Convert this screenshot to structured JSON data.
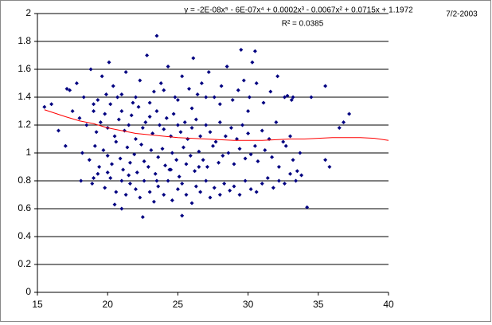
{
  "chart_data": {
    "type": "scatter",
    "annotations": [
      "y = -2E-08x⁵ - 6E-07x⁴ + 0.0002x³ - 0.0067x² + 0.0715x + 1.1972",
      "R² = 0.0385",
      "7/2-2003"
    ],
    "color": "#000080",
    "xlim": [
      15,
      40
    ],
    "xticks": [
      15,
      20,
      25,
      30,
      35,
      40
    ],
    "ylim": [
      0,
      2
    ],
    "yticks": [
      0,
      0.2,
      0.4,
      0.6,
      0.8,
      1,
      1.2,
      1.4,
      1.6,
      1.8,
      2
    ],
    "grid": true,
    "series": [
      {
        "x": [
          18,
          18.5,
          19,
          19.2,
          19.5,
          19.8,
          20,
          20.2,
          20.5,
          20.8,
          21,
          21.2,
          21.5,
          21.7,
          22,
          22.2,
          22.5,
          22.7,
          23,
          23.2,
          23.5,
          23.7,
          24,
          24.2,
          24.5,
          24.7,
          25,
          25.2,
          25.5,
          25.7,
          26,
          26.3,
          26.6,
          27,
          27.3,
          27.7,
          28,
          28.4,
          28.8,
          29.2,
          29.6,
          30,
          30.5,
          31,
          31.5,
          32,
          32.5,
          33
        ],
        "values": [
          1.25,
          1.2,
          1.3,
          1.15,
          1.22,
          1.28,
          1.18,
          1.35,
          1.12,
          1.24,
          1.3,
          1.16,
          1.2,
          1.27,
          1.1,
          1.33,
          1.18,
          1.22,
          1.26,
          1.14,
          1.3,
          1.2,
          1.17,
          1.25,
          1.12,
          1.28,
          1.2,
          1.15,
          1.22,
          1.1,
          1.18,
          1.24,
          1.12,
          1.2,
          1.15,
          1.08,
          1.22,
          1.12,
          1.18,
          1.1,
          1.2,
          1.14,
          1.05,
          1.16,
          1.1,
          1.22,
          1.08,
          1.12
        ]
      },
      {
        "x": [
          18.2,
          18.7,
          19.1,
          19.4,
          19.7,
          20,
          20.3,
          20.6,
          20.9,
          21.1,
          21.4,
          21.6,
          21.9,
          22.1,
          22.4,
          22.6,
          22.9,
          23.1,
          23.4,
          23.6,
          23.9,
          24.1,
          24.4,
          24.6,
          24.9,
          25.1,
          25.4,
          25.6,
          25.9,
          26.2,
          26.5,
          26.8,
          27.1,
          27.5,
          27.9,
          28.2,
          28.6,
          29,
          29.4,
          29.8,
          30.2,
          30.7,
          31.2,
          31.7,
          32.2,
          32.7,
          33.2,
          33.7
        ],
        "values": [
          1.0,
          0.95,
          1.05,
          0.9,
          1.02,
          0.98,
          0.92,
          1.08,
          0.96,
          0.88,
          1.04,
          0.93,
          0.99,
          0.86,
          1.06,
          0.94,
          0.9,
          1.02,
          0.85,
          0.97,
          1.03,
          0.91,
          0.88,
          1.0,
          0.95,
          0.83,
          1.04,
          0.92,
          0.98,
          0.87,
          1.01,
          0.95,
          0.9,
          1.05,
          0.93,
          0.98,
          1.0,
          0.92,
          1.03,
          0.96,
          0.99,
          0.94,
          1.02,
          0.97,
          0.9,
          1.05,
          0.95,
          1.0
        ]
      },
      {
        "x": [
          17.3,
          17.8,
          18.3,
          18.8,
          19.3,
          19.6,
          19.9,
          20.1,
          20.4,
          20.7,
          21.3,
          21.8,
          22.3,
          22.8,
          23.3,
          23.8,
          24.3,
          24.8,
          25.3,
          25.8,
          26.1,
          26.4,
          26.7,
          27.2,
          27.6,
          28.1,
          28.5,
          28.9,
          29.3,
          29.7,
          30.1,
          30.6,
          31.1,
          31.6,
          32.1,
          32.6,
          33.1,
          17.1,
          19,
          21,
          22,
          23,
          24,
          25,
          26,
          27,
          28,
          30
        ],
        "values": [
          1.45,
          1.5,
          1.4,
          1.6,
          1.38,
          1.55,
          1.42,
          1.65,
          1.48,
          1.4,
          1.58,
          1.36,
          1.52,
          1.7,
          1.44,
          1.5,
          1.62,
          1.4,
          1.55,
          1.46,
          1.68,
          1.42,
          1.5,
          1.58,
          1.4,
          1.48,
          1.62,
          1.38,
          1.45,
          1.52,
          1.4,
          1.5,
          1.36,
          1.44,
          1.55,
          1.4,
          1.38,
          1.46,
          1.35,
          1.42,
          1.4,
          1.36,
          1.45,
          1.38,
          1.32,
          1.4,
          1.35,
          1.3
        ]
      },
      {
        "x": [
          18.1,
          18.9,
          19.3,
          19.8,
          20.2,
          20.6,
          21,
          21.3,
          21.6,
          22,
          22.3,
          22.6,
          23,
          23.3,
          23.6,
          24,
          24.3,
          24.6,
          25,
          25.3,
          25.6,
          26,
          26.3,
          26.6,
          27,
          27.3,
          27.6,
          28,
          28.3,
          28.7,
          29,
          29.4,
          29.8,
          30.2,
          30.6,
          31,
          31.4,
          31.8,
          32.2,
          32.6,
          33,
          33.4,
          19,
          20,
          21.5,
          23.5,
          24.5,
          26.5
        ],
        "values": [
          0.8,
          0.78,
          0.85,
          0.75,
          0.82,
          0.72,
          0.8,
          0.7,
          0.78,
          0.74,
          0.68,
          0.8,
          0.72,
          0.65,
          0.76,
          0.7,
          0.8,
          0.66,
          0.74,
          0.78,
          0.7,
          0.64,
          0.76,
          0.72,
          0.8,
          0.68,
          0.75,
          0.7,
          0.78,
          0.73,
          0.76,
          0.7,
          0.8,
          0.74,
          0.72,
          0.78,
          0.82,
          0.75,
          0.8,
          0.78,
          0.85,
          0.8,
          0.82,
          0.86,
          0.84,
          0.8,
          0.88,
          0.9
        ]
      },
      {
        "x": [
          15.5,
          16,
          16.5,
          17,
          17.5,
          23.5,
          22.5,
          25.3,
          34.2,
          29.5,
          30.5,
          30.3,
          35.5,
          37.2,
          36.5,
          35.5,
          35.8,
          33.5,
          33.8,
          21,
          20.5,
          36.8,
          34.5,
          32.8,
          33.2
        ],
        "values": [
          1.33,
          1.35,
          1.16,
          1.05,
          1.3,
          1.84,
          0.54,
          0.55,
          0.61,
          1.74,
          1.73,
          1.65,
          1.48,
          1.28,
          1.18,
          0.95,
          0.9,
          0.87,
          0.84,
          0.6,
          0.63,
          1.22,
          1.4,
          1.41,
          1.4
        ]
      }
    ],
    "trendline": {
      "color": "#ff0000",
      "x": [
        15.5,
        17,
        18,
        19,
        20,
        21,
        22,
        23,
        24,
        25,
        26,
        27,
        28,
        29,
        30,
        31,
        32,
        33,
        34,
        35,
        36,
        37,
        38,
        39,
        40
      ],
      "values": [
        1.31,
        1.26,
        1.23,
        1.21,
        1.18,
        1.16,
        1.14,
        1.13,
        1.12,
        1.11,
        1.105,
        1.1,
        1.095,
        1.09,
        1.09,
        1.09,
        1.095,
        1.1,
        1.1,
        1.105,
        1.11,
        1.11,
        1.11,
        1.105,
        1.09
      ]
    }
  }
}
